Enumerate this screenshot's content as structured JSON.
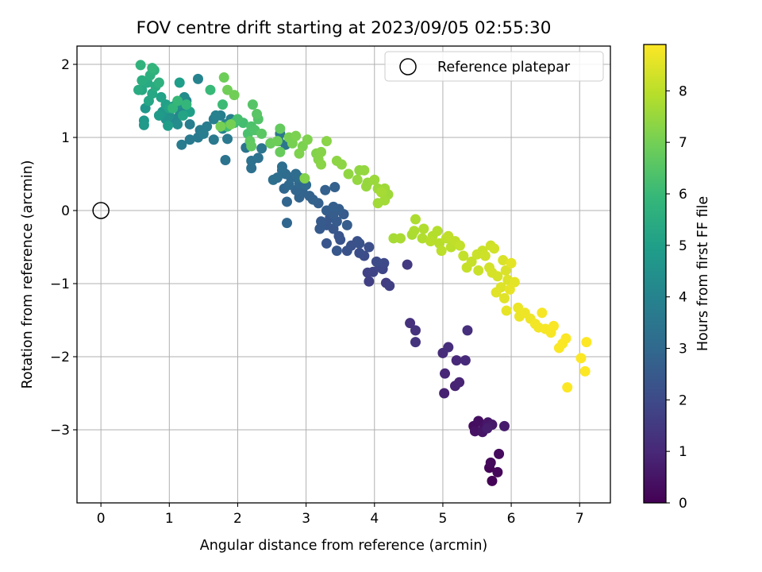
{
  "chart_data": {
    "type": "scatter",
    "title": "FOV centre drift starting at 2023/09/05 02:55:30",
    "xlabel": "Angular distance from reference (arcmin)",
    "ylabel": "Rotation from reference (arcmin)",
    "xlim": [
      -0.35,
      7.45
    ],
    "ylim": [
      -4.0,
      2.25
    ],
    "x_ticks": [
      0,
      1,
      2,
      3,
      4,
      5,
      6,
      7
    ],
    "y_ticks": [
      -3,
      -2,
      -1,
      0,
      1,
      2
    ],
    "x_tick_labels": [
      "0",
      "1",
      "2",
      "3",
      "4",
      "5",
      "6",
      "7"
    ],
    "y_tick_labels": [
      "−3",
      "−2",
      "−1",
      "0",
      "1",
      "2"
    ],
    "grid": true,
    "legend": {
      "placement": "top-right",
      "entries": [
        {
          "label": "Reference platepar",
          "marker": "open-circle"
        }
      ]
    },
    "reference_point": {
      "x": 0,
      "y": 0
    },
    "colorbar": {
      "label": "Hours from first FF file",
      "colormap": "viridis",
      "range": [
        0,
        8.9
      ],
      "ticks": [
        0,
        1,
        2,
        3,
        4,
        5,
        6,
        7,
        8
      ],
      "tick_labels": [
        "0",
        "1",
        "2",
        "3",
        "4",
        "5",
        "6",
        "7",
        "8"
      ]
    },
    "points": [
      {
        "x": 5.72,
        "y": -3.7,
        "t": 0.05
      },
      {
        "x": 5.68,
        "y": -3.52,
        "t": 0.1
      },
      {
        "x": 5.8,
        "y": -3.58,
        "t": 0.15
      },
      {
        "x": 5.7,
        "y": -3.45,
        "t": 0.2
      },
      {
        "x": 5.82,
        "y": -3.33,
        "t": 0.25
      },
      {
        "x": 5.45,
        "y": -2.95,
        "t": 0.3
      },
      {
        "x": 5.52,
        "y": -2.88,
        "t": 0.35
      },
      {
        "x": 5.6,
        "y": -2.97,
        "t": 0.4
      },
      {
        "x": 5.47,
        "y": -3.02,
        "t": 0.45
      },
      {
        "x": 5.58,
        "y": -3.03,
        "t": 0.5
      },
      {
        "x": 5.66,
        "y": -2.9,
        "t": 0.55
      },
      {
        "x": 5.72,
        "y": -2.93,
        "t": 0.6
      },
      {
        "x": 5.9,
        "y": -2.95,
        "t": 0.65
      },
      {
        "x": 5.65,
        "y": -2.98,
        "t": 0.7
      },
      {
        "x": 5.02,
        "y": -2.5,
        "t": 0.8
      },
      {
        "x": 5.18,
        "y": -2.4,
        "t": 0.85
      },
      {
        "x": 5.24,
        "y": -2.35,
        "t": 0.9
      },
      {
        "x": 5.03,
        "y": -2.23,
        "t": 0.95
      },
      {
        "x": 5.2,
        "y": -2.05,
        "t": 1.0
      },
      {
        "x": 5.33,
        "y": -2.05,
        "t": 1.05
      },
      {
        "x": 5.0,
        "y": -1.95,
        "t": 1.1
      },
      {
        "x": 5.08,
        "y": -1.87,
        "t": 1.15
      },
      {
        "x": 5.36,
        "y": -1.64,
        "t": 1.2
      },
      {
        "x": 4.52,
        "y": -1.54,
        "t": 1.25
      },
      {
        "x": 4.6,
        "y": -1.64,
        "t": 1.3
      },
      {
        "x": 4.6,
        "y": -1.8,
        "t": 1.35
      },
      {
        "x": 4.48,
        "y": -0.74,
        "t": 1.5
      },
      {
        "x": 4.17,
        "y": -0.99,
        "t": 1.6
      },
      {
        "x": 4.22,
        "y": -1.03,
        "t": 1.65
      },
      {
        "x": 3.92,
        "y": -0.97,
        "t": 1.7
      },
      {
        "x": 3.9,
        "y": -0.85,
        "t": 1.75
      },
      {
        "x": 3.98,
        "y": -0.84,
        "t": 1.8
      },
      {
        "x": 4.12,
        "y": -0.8,
        "t": 1.85
      },
      {
        "x": 4.08,
        "y": -0.77,
        "t": 1.9
      },
      {
        "x": 4.14,
        "y": -0.72,
        "t": 1.95
      },
      {
        "x": 4.03,
        "y": -0.7,
        "t": 2.0
      },
      {
        "x": 3.85,
        "y": -0.62,
        "t": 2.05
      },
      {
        "x": 3.78,
        "y": -0.58,
        "t": 2.1
      },
      {
        "x": 3.92,
        "y": -0.5,
        "t": 2.15
      },
      {
        "x": 3.66,
        "y": -0.48,
        "t": 2.2
      },
      {
        "x": 3.75,
        "y": -0.42,
        "t": 2.2
      },
      {
        "x": 3.6,
        "y": -0.55,
        "t": 2.25
      },
      {
        "x": 3.78,
        "y": -0.45,
        "t": 2.25
      },
      {
        "x": 3.5,
        "y": -0.4,
        "t": 2.3
      },
      {
        "x": 3.48,
        "y": -0.35,
        "t": 2.35
      },
      {
        "x": 3.3,
        "y": -0.45,
        "t": 2.35
      },
      {
        "x": 3.45,
        "y": -0.55,
        "t": 2.4
      },
      {
        "x": 3.4,
        "y": -0.25,
        "t": 2.4
      },
      {
        "x": 3.3,
        "y": -0.2,
        "t": 2.45
      },
      {
        "x": 3.35,
        "y": -0.1,
        "t": 2.45
      },
      {
        "x": 3.2,
        "y": -0.25,
        "t": 2.5
      },
      {
        "x": 3.22,
        "y": -0.15,
        "t": 2.5
      },
      {
        "x": 3.45,
        "y": -0.15,
        "t": 2.55
      },
      {
        "x": 3.55,
        "y": -0.05,
        "t": 2.55
      },
      {
        "x": 3.6,
        "y": -0.2,
        "t": 2.6
      },
      {
        "x": 3.4,
        "y": -0.05,
        "t": 2.6
      },
      {
        "x": 3.3,
        "y": 0.0,
        "t": 2.65
      },
      {
        "x": 3.48,
        "y": 0.02,
        "t": 2.65
      },
      {
        "x": 3.18,
        "y": 0.1,
        "t": 2.7
      },
      {
        "x": 3.4,
        "y": 0.05,
        "t": 2.7
      },
      {
        "x": 3.28,
        "y": 0.28,
        "t": 2.75
      },
      {
        "x": 3.42,
        "y": 0.32,
        "t": 2.75
      },
      {
        "x": 3.05,
        "y": 0.2,
        "t": 2.8
      },
      {
        "x": 3.1,
        "y": 0.15,
        "t": 2.8
      },
      {
        "x": 2.9,
        "y": 0.18,
        "t": 2.85
      },
      {
        "x": 2.95,
        "y": 0.25,
        "t": 2.85
      },
      {
        "x": 2.85,
        "y": 0.28,
        "t": 2.9
      },
      {
        "x": 2.72,
        "y": 0.12,
        "t": 2.9
      },
      {
        "x": 2.72,
        "y": -0.17,
        "t": 2.95
      },
      {
        "x": 2.68,
        "y": 0.3,
        "t": 2.95
      },
      {
        "x": 2.75,
        "y": 0.35,
        "t": 3.0
      },
      {
        "x": 2.9,
        "y": 0.38,
        "t": 3.0
      },
      {
        "x": 3.0,
        "y": 0.35,
        "t": 3.05
      },
      {
        "x": 2.78,
        "y": 0.45,
        "t": 3.05
      },
      {
        "x": 2.9,
        "y": 0.45,
        "t": 3.1
      },
      {
        "x": 2.7,
        "y": 0.5,
        "t": 3.1
      },
      {
        "x": 2.65,
        "y": 0.55,
        "t": 3.15
      },
      {
        "x": 2.85,
        "y": 0.5,
        "t": 3.15
      },
      {
        "x": 2.58,
        "y": 0.45,
        "t": 3.2
      },
      {
        "x": 2.65,
        "y": 0.6,
        "t": 3.2
      },
      {
        "x": 2.52,
        "y": 0.42,
        "t": 3.25
      },
      {
        "x": 2.2,
        "y": 0.58,
        "t": 3.3
      },
      {
        "x": 2.2,
        "y": 0.68,
        "t": 3.35
      },
      {
        "x": 2.3,
        "y": 0.72,
        "t": 3.35
      },
      {
        "x": 1.82,
        "y": 0.69,
        "t": 3.4
      },
      {
        "x": 2.12,
        "y": 0.86,
        "t": 3.4
      },
      {
        "x": 2.35,
        "y": 0.85,
        "t": 3.45
      },
      {
        "x": 2.48,
        "y": 0.92,
        "t": 3.45
      },
      {
        "x": 2.6,
        "y": 0.95,
        "t": 3.5
      },
      {
        "x": 2.7,
        "y": 0.9,
        "t": 3.5
      },
      {
        "x": 2.62,
        "y": 1.05,
        "t": 3.55
      },
      {
        "x": 1.85,
        "y": 0.98,
        "t": 3.6
      },
      {
        "x": 1.65,
        "y": 0.97,
        "t": 3.6
      },
      {
        "x": 1.42,
        "y": 1.0,
        "t": 3.65
      },
      {
        "x": 1.3,
        "y": 0.97,
        "t": 3.65
      },
      {
        "x": 1.18,
        "y": 0.9,
        "t": 3.7
      },
      {
        "x": 1.45,
        "y": 1.1,
        "t": 3.7
      },
      {
        "x": 1.55,
        "y": 1.15,
        "t": 3.75
      },
      {
        "x": 1.5,
        "y": 1.05,
        "t": 3.75
      },
      {
        "x": 1.3,
        "y": 1.18,
        "t": 3.8
      },
      {
        "x": 1.65,
        "y": 1.25,
        "t": 3.8
      },
      {
        "x": 1.75,
        "y": 1.3,
        "t": 3.85
      },
      {
        "x": 1.82,
        "y": 1.18,
        "t": 3.85
      },
      {
        "x": 1.9,
        "y": 1.25,
        "t": 3.9
      },
      {
        "x": 1.68,
        "y": 1.3,
        "t": 3.9
      },
      {
        "x": 1.78,
        "y": 1.12,
        "t": 3.95
      },
      {
        "x": 1.42,
        "y": 1.8,
        "t": 4.0
      },
      {
        "x": 1.25,
        "y": 1.5,
        "t": 4.05
      },
      {
        "x": 1.2,
        "y": 1.35,
        "t": 4.1
      },
      {
        "x": 1.15,
        "y": 1.3,
        "t": 4.15
      },
      {
        "x": 1.05,
        "y": 1.25,
        "t": 4.2
      },
      {
        "x": 1.18,
        "y": 1.4,
        "t": 4.25
      },
      {
        "x": 1.12,
        "y": 1.18,
        "t": 4.3
      },
      {
        "x": 1.22,
        "y": 1.55,
        "t": 4.35
      },
      {
        "x": 1.0,
        "y": 1.3,
        "t": 4.45
      },
      {
        "x": 1.1,
        "y": 1.45,
        "t": 4.5
      },
      {
        "x": 0.95,
        "y": 1.25,
        "t": 4.55
      },
      {
        "x": 1.05,
        "y": 1.42,
        "t": 4.6
      },
      {
        "x": 0.65,
        "y": 1.4,
        "t": 4.65
      },
      {
        "x": 0.9,
        "y": 1.35,
        "t": 4.7
      },
      {
        "x": 0.63,
        "y": 1.23,
        "t": 4.75
      },
      {
        "x": 0.63,
        "y": 1.17,
        "t": 4.8
      },
      {
        "x": 0.85,
        "y": 1.3,
        "t": 4.85
      },
      {
        "x": 0.98,
        "y": 1.16,
        "t": 4.9
      },
      {
        "x": 1.15,
        "y": 1.75,
        "t": 4.95
      },
      {
        "x": 1.3,
        "y": 1.35,
        "t": 5.0
      },
      {
        "x": 0.95,
        "y": 1.45,
        "t": 5.05
      },
      {
        "x": 0.88,
        "y": 1.55,
        "t": 5.1
      },
      {
        "x": 1.0,
        "y": 1.4,
        "t": 5.15
      },
      {
        "x": 1.2,
        "y": 1.3,
        "t": 5.2
      },
      {
        "x": 0.7,
        "y": 1.5,
        "t": 5.25
      },
      {
        "x": 0.75,
        "y": 1.6,
        "t": 5.3
      },
      {
        "x": 0.6,
        "y": 1.65,
        "t": 5.35
      },
      {
        "x": 0.68,
        "y": 1.75,
        "t": 5.4
      },
      {
        "x": 0.55,
        "y": 1.65,
        "t": 5.45
      },
      {
        "x": 0.8,
        "y": 1.7,
        "t": 5.5
      },
      {
        "x": 0.6,
        "y": 1.78,
        "t": 5.55
      },
      {
        "x": 0.72,
        "y": 1.85,
        "t": 5.6
      },
      {
        "x": 0.85,
        "y": 1.75,
        "t": 5.65
      },
      {
        "x": 0.78,
        "y": 1.92,
        "t": 5.7
      },
      {
        "x": 0.58,
        "y": 1.99,
        "t": 5.75
      },
      {
        "x": 0.75,
        "y": 1.95,
        "t": 5.8
      },
      {
        "x": 1.05,
        "y": 1.4,
        "t": 5.85
      },
      {
        "x": 1.25,
        "y": 1.45,
        "t": 5.9
      },
      {
        "x": 1.12,
        "y": 1.5,
        "t": 5.95
      },
      {
        "x": 1.6,
        "y": 1.65,
        "t": 6.0
      },
      {
        "x": 1.78,
        "y": 1.45,
        "t": 6.05
      },
      {
        "x": 1.95,
        "y": 1.2,
        "t": 6.1
      },
      {
        "x": 1.85,
        "y": 1.15,
        "t": 6.15
      },
      {
        "x": 2.08,
        "y": 1.2,
        "t": 6.2
      },
      {
        "x": 2.0,
        "y": 1.25,
        "t": 6.25
      },
      {
        "x": 2.15,
        "y": 1.05,
        "t": 6.3
      },
      {
        "x": 2.2,
        "y": 1.15,
        "t": 6.35
      },
      {
        "x": 2.25,
        "y": 1.1,
        "t": 6.4
      },
      {
        "x": 2.3,
        "y": 1.25,
        "t": 6.45
      },
      {
        "x": 2.22,
        "y": 1.45,
        "t": 6.5
      },
      {
        "x": 2.28,
        "y": 1.32,
        "t": 6.55
      },
      {
        "x": 2.35,
        "y": 1.05,
        "t": 6.6
      },
      {
        "x": 2.18,
        "y": 0.95,
        "t": 6.65
      },
      {
        "x": 2.2,
        "y": 0.88,
        "t": 6.7
      },
      {
        "x": 2.62,
        "y": 1.12,
        "t": 6.75
      },
      {
        "x": 2.62,
        "y": 0.8,
        "t": 6.8
      },
      {
        "x": 2.48,
        "y": 0.92,
        "t": 6.85
      },
      {
        "x": 2.58,
        "y": 0.95,
        "t": 6.9
      },
      {
        "x": 1.8,
        "y": 1.82,
        "t": 6.9
      },
      {
        "x": 1.85,
        "y": 1.65,
        "t": 6.95
      },
      {
        "x": 1.95,
        "y": 1.58,
        "t": 6.95
      },
      {
        "x": 1.75,
        "y": 1.15,
        "t": 7.0
      },
      {
        "x": 1.9,
        "y": 1.18,
        "t": 7.0
      },
      {
        "x": 2.8,
        "y": 0.92,
        "t": 7.05
      },
      {
        "x": 2.75,
        "y": 1.0,
        "t": 7.05
      },
      {
        "x": 2.85,
        "y": 1.02,
        "t": 7.1
      },
      {
        "x": 2.95,
        "y": 0.88,
        "t": 7.1
      },
      {
        "x": 3.02,
        "y": 0.97,
        "t": 7.15
      },
      {
        "x": 2.9,
        "y": 0.78,
        "t": 7.15
      },
      {
        "x": 2.98,
        "y": 0.44,
        "t": 7.2
      },
      {
        "x": 3.15,
        "y": 0.78,
        "t": 7.2
      },
      {
        "x": 3.22,
        "y": 0.8,
        "t": 7.25
      },
      {
        "x": 3.18,
        "y": 0.7,
        "t": 7.25
      },
      {
        "x": 3.22,
        "y": 0.63,
        "t": 7.3
      },
      {
        "x": 3.3,
        "y": 0.95,
        "t": 7.3
      },
      {
        "x": 3.45,
        "y": 0.68,
        "t": 7.35
      },
      {
        "x": 3.52,
        "y": 0.63,
        "t": 7.35
      },
      {
        "x": 3.62,
        "y": 0.5,
        "t": 7.4
      },
      {
        "x": 3.78,
        "y": 0.55,
        "t": 7.4
      },
      {
        "x": 3.85,
        "y": 0.55,
        "t": 7.45
      },
      {
        "x": 3.75,
        "y": 0.42,
        "t": 7.45
      },
      {
        "x": 3.9,
        "y": 0.38,
        "t": 7.5
      },
      {
        "x": 3.88,
        "y": 0.33,
        "t": 7.5
      },
      {
        "x": 4.0,
        "y": 0.42,
        "t": 7.55
      },
      {
        "x": 4.05,
        "y": 0.3,
        "t": 7.55
      },
      {
        "x": 4.15,
        "y": 0.3,
        "t": 7.6
      },
      {
        "x": 4.2,
        "y": 0.22,
        "t": 7.6
      },
      {
        "x": 4.05,
        "y": 0.1,
        "t": 7.65
      },
      {
        "x": 4.15,
        "y": 0.14,
        "t": 7.65
      },
      {
        "x": 4.1,
        "y": 0.25,
        "t": 7.7
      },
      {
        "x": 4.28,
        "y": -0.38,
        "t": 7.7
      },
      {
        "x": 4.38,
        "y": -0.38,
        "t": 7.75
      },
      {
        "x": 4.55,
        "y": -0.33,
        "t": 7.75
      },
      {
        "x": 4.6,
        "y": -0.12,
        "t": 7.8
      },
      {
        "x": 4.58,
        "y": -0.28,
        "t": 7.8
      },
      {
        "x": 4.72,
        "y": -0.25,
        "t": 7.85
      },
      {
        "x": 4.7,
        "y": -0.38,
        "t": 7.85
      },
      {
        "x": 4.85,
        "y": -0.35,
        "t": 7.9
      },
      {
        "x": 4.92,
        "y": -0.28,
        "t": 7.9
      },
      {
        "x": 4.82,
        "y": -0.42,
        "t": 7.95
      },
      {
        "x": 4.95,
        "y": -0.45,
        "t": 7.95
      },
      {
        "x": 5.05,
        "y": -0.38,
        "t": 8.0
      },
      {
        "x": 4.98,
        "y": -0.55,
        "t": 8.0
      },
      {
        "x": 5.12,
        "y": -0.5,
        "t": 8.0
      },
      {
        "x": 5.18,
        "y": -0.42,
        "t": 8.05
      },
      {
        "x": 5.08,
        "y": -0.35,
        "t": 8.05
      },
      {
        "x": 5.25,
        "y": -0.48,
        "t": 8.1
      },
      {
        "x": 5.3,
        "y": -0.62,
        "t": 8.1
      },
      {
        "x": 5.35,
        "y": -0.78,
        "t": 8.15
      },
      {
        "x": 5.42,
        "y": -0.7,
        "t": 8.15
      },
      {
        "x": 5.5,
        "y": -0.6,
        "t": 8.2
      },
      {
        "x": 5.52,
        "y": -0.82,
        "t": 8.2
      },
      {
        "x": 5.58,
        "y": -0.55,
        "t": 8.2
      },
      {
        "x": 5.62,
        "y": -0.62,
        "t": 8.25
      },
      {
        "x": 5.7,
        "y": -0.48,
        "t": 8.25
      },
      {
        "x": 5.75,
        "y": -0.52,
        "t": 8.3
      },
      {
        "x": 5.68,
        "y": -0.78,
        "t": 8.3
      },
      {
        "x": 5.72,
        "y": -0.85,
        "t": 8.35
      },
      {
        "x": 5.8,
        "y": -0.9,
        "t": 8.35
      },
      {
        "x": 5.88,
        "y": -0.68,
        "t": 8.4
      },
      {
        "x": 5.92,
        "y": -0.82,
        "t": 8.4
      },
      {
        "x": 5.85,
        "y": -1.05,
        "t": 8.45
      },
      {
        "x": 5.95,
        "y": -0.95,
        "t": 8.45
      },
      {
        "x": 5.78,
        "y": -1.12,
        "t": 8.5
      },
      {
        "x": 5.9,
        "y": -1.2,
        "t": 8.5
      },
      {
        "x": 6.0,
        "y": -0.72,
        "t": 8.55
      },
      {
        "x": 6.05,
        "y": -0.98,
        "t": 8.55
      },
      {
        "x": 5.98,
        "y": -1.08,
        "t": 8.6
      },
      {
        "x": 5.93,
        "y": -1.37,
        "t": 8.6
      },
      {
        "x": 6.1,
        "y": -1.33,
        "t": 8.65
      },
      {
        "x": 6.12,
        "y": -1.45,
        "t": 8.65
      },
      {
        "x": 6.2,
        "y": -1.4,
        "t": 8.7
      },
      {
        "x": 6.28,
        "y": -1.48,
        "t": 8.7
      },
      {
        "x": 6.35,
        "y": -1.55,
        "t": 8.75
      },
      {
        "x": 6.4,
        "y": -1.6,
        "t": 8.75
      },
      {
        "x": 6.45,
        "y": -1.4,
        "t": 8.8
      },
      {
        "x": 6.5,
        "y": -1.62,
        "t": 8.8
      },
      {
        "x": 6.58,
        "y": -1.67,
        "t": 8.82
      },
      {
        "x": 6.62,
        "y": -1.58,
        "t": 8.84
      },
      {
        "x": 6.7,
        "y": -1.88,
        "t": 8.86
      },
      {
        "x": 6.75,
        "y": -1.82,
        "t": 8.86
      },
      {
        "x": 6.8,
        "y": -1.75,
        "t": 8.87
      },
      {
        "x": 6.82,
        "y": -2.42,
        "t": 8.88
      },
      {
        "x": 7.02,
        "y": -2.02,
        "t": 8.88
      },
      {
        "x": 7.08,
        "y": -2.2,
        "t": 8.89
      },
      {
        "x": 7.1,
        "y": -1.8,
        "t": 8.9
      }
    ]
  }
}
